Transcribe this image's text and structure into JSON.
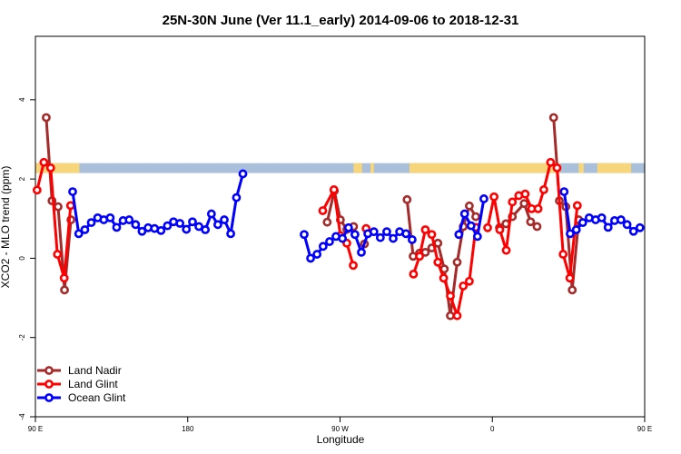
{
  "chart_data": {
    "type": "line",
    "title": "25N-30N June (Ver 11.1_early)   2014-09-06 to 2018-12-31",
    "xlabel": "Longitude",
    "ylabel": "XCO2 - MLO trend (ppm)",
    "xlim": [
      90,
      450
    ],
    "ylim": [
      -4,
      5.6
    ],
    "xticks": [
      {
        "value": 90,
        "label": "90 E"
      },
      {
        "value": 180,
        "label": "180"
      },
      {
        "value": 270,
        "label": "90 W"
      },
      {
        "value": 360,
        "label": "0"
      },
      {
        "value": 450,
        "label": "90 E"
      },
      {
        "value": 540,
        "label": "180"
      }
    ],
    "yticks": [
      {
        "value": -4,
        "label": "-4"
      },
      {
        "value": -2,
        "label": "-2"
      },
      {
        "value": 0,
        "label": "0"
      },
      {
        "value": 2,
        "label": "2"
      },
      {
        "value": 4,
        "label": "4"
      }
    ],
    "legend_position": "bottom-left",
    "land_ocean_band": {
      "y_range": [
        2.15,
        2.4
      ],
      "land_color": "#F7D57A",
      "ocean_color": "#A9BFDA",
      "land_segments": [
        [
          90,
          116
        ],
        [
          278,
          283
        ],
        [
          288,
          290
        ],
        [
          311,
          400
        ],
        [
          411,
          414
        ],
        [
          422,
          442
        ],
        [
          450,
          476
        ]
      ]
    },
    "series": [
      {
        "name": "Land Nadir",
        "color": "#A52A2A",
        "segments": [
          [
            [
              96.4,
              3.55
            ],
            [
              99.8,
              1.45
            ],
            [
              103.4,
              1.3
            ],
            [
              107.2,
              -0.8
            ],
            [
              111,
              0.97
            ]
          ],
          [
            [
              262.4,
              0.91
            ],
            [
              266.6,
              1.7
            ],
            [
              270.2,
              0.97
            ],
            [
              274,
              0.73
            ],
            [
              278,
              0.8
            ]
          ],
          [
            [
              284.4,
              0.36
            ]
          ],
          [
            [
              309.6,
              1.48
            ],
            [
              313.2,
              0.05
            ],
            [
              317,
              0.13
            ],
            [
              320.4,
              0.15
            ],
            [
              324.2,
              0.26
            ],
            [
              327.8,
              0.38
            ],
            [
              331.6,
              -0.27
            ],
            [
              335.2,
              -1.45
            ],
            [
              339.2,
              -0.1
            ],
            [
              342.8,
              0.8
            ],
            [
              346.4,
              1.32
            ],
            [
              350.2,
              1.05
            ]
          ],
          [
            [
              364.2,
              0.77
            ],
            [
              368,
              0.87
            ],
            [
              371.8,
              1.05
            ],
            [
              378.8,
              1.38
            ],
            [
              382.6,
              0.92
            ],
            [
              386.4,
              0.8
            ]
          ],
          [
            [
              396.2,
              3.55
            ],
            [
              399.6,
              1.45
            ],
            [
              403.4,
              1.3
            ],
            [
              407.2,
              -0.8
            ],
            [
              411,
              0.97
            ]
          ]
        ]
      },
      {
        "name": "Land Glint",
        "color": "#FF0000",
        "segments": [
          [
            [
              91,
              1.72
            ],
            [
              95,
              2.42
            ],
            [
              99,
              2.28
            ],
            [
              103,
              0.1
            ],
            [
              107,
              -0.5
            ],
            [
              110.8,
              1.33
            ]
          ],
          [
            [
              259.8,
              1.2
            ],
            [
              266.4,
              1.73
            ],
            [
              270.2,
              0.57
            ],
            [
              274,
              0.38
            ],
            [
              277.8,
              -0.18
            ]
          ],
          [
            [
              285.4,
              0.75
            ]
          ],
          [
            [
              313.4,
              -0.4
            ],
            [
              317,
              0.05
            ],
            [
              320.4,
              0.72
            ],
            [
              324.2,
              0.6
            ],
            [
              327.8,
              -0.1
            ],
            [
              331.2,
              -0.5
            ],
            [
              335.2,
              -0.95
            ],
            [
              339.2,
              -1.45
            ],
            [
              342.8,
              -0.7
            ],
            [
              346.4,
              -0.58
            ],
            [
              350.2,
              0.78
            ]
          ],
          [
            [
              357.2,
              0.77
            ],
            [
              361,
              1.55
            ],
            [
              364.4,
              0.72
            ],
            [
              368.2,
              0.2
            ],
            [
              371.8,
              1.42
            ],
            [
              375.6,
              1.58
            ],
            [
              379.4,
              1.62
            ],
            [
              383.2,
              1.25
            ],
            [
              387,
              1.25
            ],
            [
              390.4,
              1.73
            ],
            [
              394.4,
              2.42
            ],
            [
              398.2,
              2.28
            ],
            [
              401.8,
              0.1
            ],
            [
              405.8,
              -0.5
            ],
            [
              410.2,
              1.33
            ]
          ]
        ]
      },
      {
        "name": "Ocean Glint",
        "color": "#0000FF",
        "segments": [
          [
            [
              112,
              1.68
            ],
            [
              115.6,
              0.62
            ],
            [
              119.2,
              0.72
            ],
            [
              123,
              0.9
            ],
            [
              126.8,
              1.02
            ],
            [
              130.4,
              0.97
            ],
            [
              134.2,
              1.02
            ],
            [
              138,
              0.78
            ],
            [
              141.8,
              0.95
            ],
            [
              145.4,
              0.97
            ],
            [
              149.2,
              0.85
            ],
            [
              153,
              0.68
            ],
            [
              156.6,
              0.77
            ],
            [
              160.4,
              0.75
            ],
            [
              164.2,
              0.7
            ],
            [
              168,
              0.82
            ],
            [
              171.6,
              0.92
            ],
            [
              175.4,
              0.88
            ],
            [
              179.2,
              0.73
            ],
            [
              182.8,
              0.92
            ],
            [
              186.6,
              0.8
            ],
            [
              190.4,
              0.72
            ],
            [
              194,
              1.12
            ],
            [
              197.8,
              0.85
            ],
            [
              201.6,
              0.97
            ],
            [
              205.4,
              0.62
            ],
            [
              208.8,
              1.53
            ],
            [
              212.6,
              2.13
            ]
          ],
          [
            [
              248.8,
              0.6
            ],
            [
              252.6,
              0.0
            ],
            [
              256.4,
              0.1
            ],
            [
              260,
              0.3
            ],
            [
              263.8,
              0.42
            ],
            [
              267.6,
              0.55
            ],
            [
              271.4,
              0.5
            ],
            [
              275,
              0.77
            ],
            [
              278.8,
              0.6
            ],
            [
              282.6,
              0.15
            ],
            [
              286.4,
              0.62
            ],
            [
              290,
              0.67
            ],
            [
              293.8,
              0.52
            ],
            [
              297.6,
              0.67
            ],
            [
              301.4,
              0.5
            ],
            [
              305.2,
              0.67
            ],
            [
              309,
              0.62
            ],
            [
              312.6,
              0.47
            ]
          ],
          [
            [
              340.2,
              0.6
            ],
            [
              343.6,
              1.12
            ],
            [
              347.4,
              0.82
            ],
            [
              351.2,
              0.55
            ],
            [
              355,
              1.5
            ]
          ],
          [
            [
              402.4,
              1.68
            ],
            [
              406,
              0.62
            ],
            [
              409.6,
              0.72
            ],
            [
              413.4,
              0.9
            ],
            [
              417.2,
              1.02
            ],
            [
              421,
              0.97
            ],
            [
              424.6,
              1.02
            ],
            [
              428.4,
              0.78
            ],
            [
              432.2,
              0.95
            ],
            [
              436,
              0.97
            ],
            [
              439.6,
              0.85
            ],
            [
              443.4,
              0.68
            ],
            [
              447.2,
              0.77
            ]
          ]
        ]
      }
    ]
  }
}
